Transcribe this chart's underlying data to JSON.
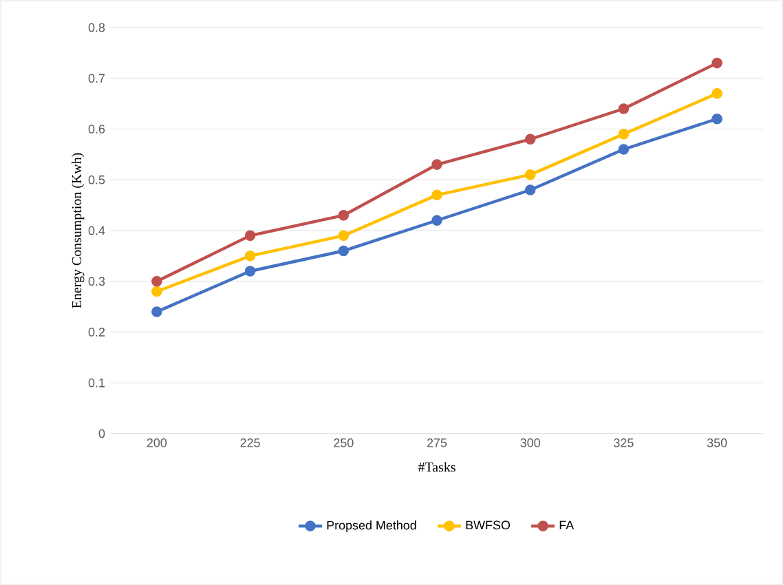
{
  "chart_data": {
    "type": "line",
    "xlabel": "#Tasks",
    "ylabel": "Energy Consumption (Kwh)",
    "categories": [
      "200",
      "225",
      "250",
      "275",
      "300",
      "325",
      "350"
    ],
    "series": [
      {
        "name": "Propsed Method",
        "color": "#4472c4",
        "values": [
          0.24,
          0.32,
          0.36,
          0.42,
          0.48,
          0.56,
          0.62
        ]
      },
      {
        "name": "BWFSO",
        "color": "#ffc000",
        "values": [
          0.28,
          0.35,
          0.39,
          0.47,
          0.51,
          0.59,
          0.67
        ]
      },
      {
        "name": "FA",
        "color": "#c0504d",
        "values": [
          0.3,
          0.39,
          0.43,
          0.53,
          0.58,
          0.64,
          0.73
        ]
      }
    ],
    "ylim": [
      0,
      0.8
    ],
    "yticks": [
      0,
      0.1,
      0.2,
      0.3,
      0.4,
      0.5,
      0.6,
      0.7,
      0.8
    ],
    "grid": "y",
    "legend": "bottom",
    "marker": "circle"
  }
}
